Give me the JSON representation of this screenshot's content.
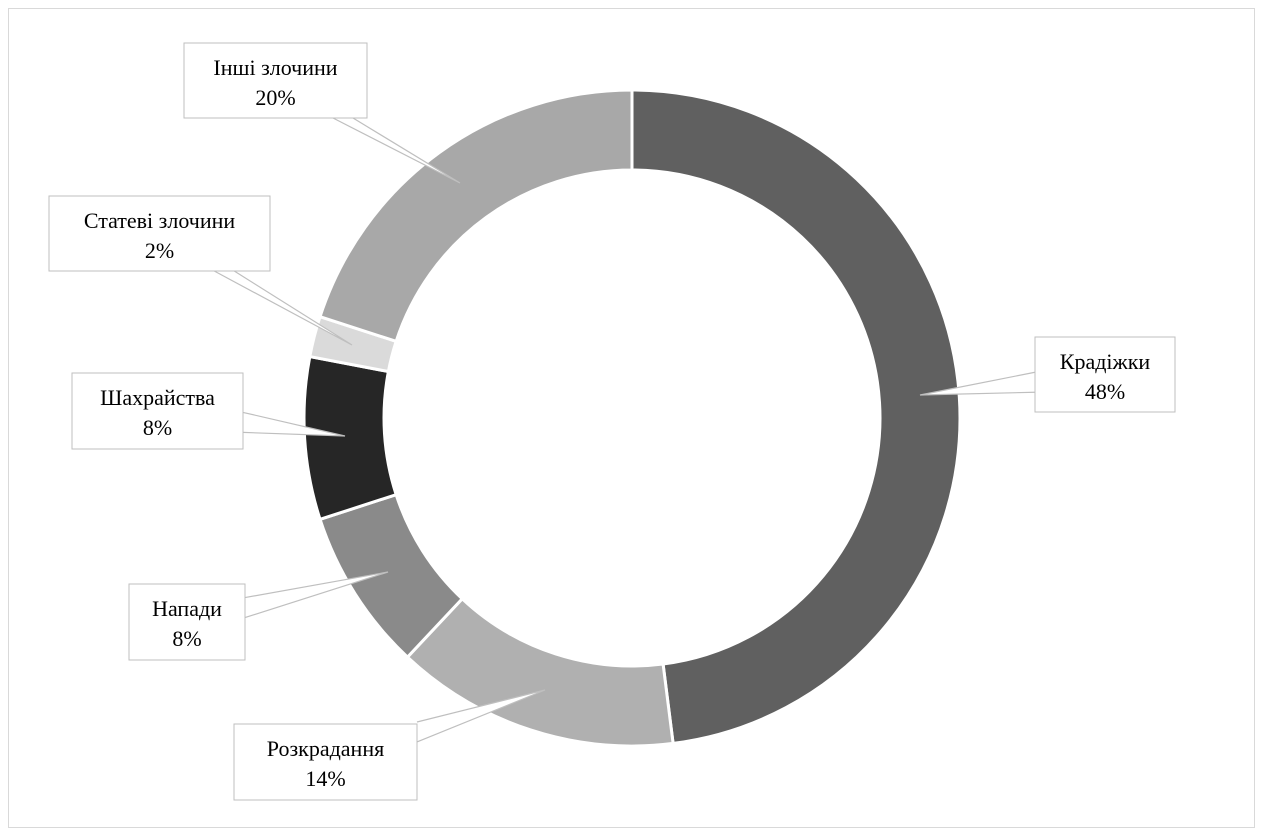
{
  "chart_data": {
    "type": "pie",
    "donut": true,
    "legend": "none",
    "slices": [
      {
        "name": "Крадіжки",
        "value": 48,
        "label": "48%",
        "color": "#606060"
      },
      {
        "name": "Розкрадання",
        "value": 14,
        "label": "14%",
        "color": "#b0b0b0"
      },
      {
        "name": "Напади",
        "value": 8,
        "label": "8%",
        "color": "#8a8a8a"
      },
      {
        "name": "Шахрайства",
        "value": 8,
        "label": "8%",
        "color": "#262626"
      },
      {
        "name": "Статеві злочини",
        "value": 2,
        "label": "2%",
        "color": "#dadada"
      },
      {
        "name": "Інші злочини",
        "value": 20,
        "label": "20%",
        "color": "#a8a8a8"
      }
    ]
  }
}
